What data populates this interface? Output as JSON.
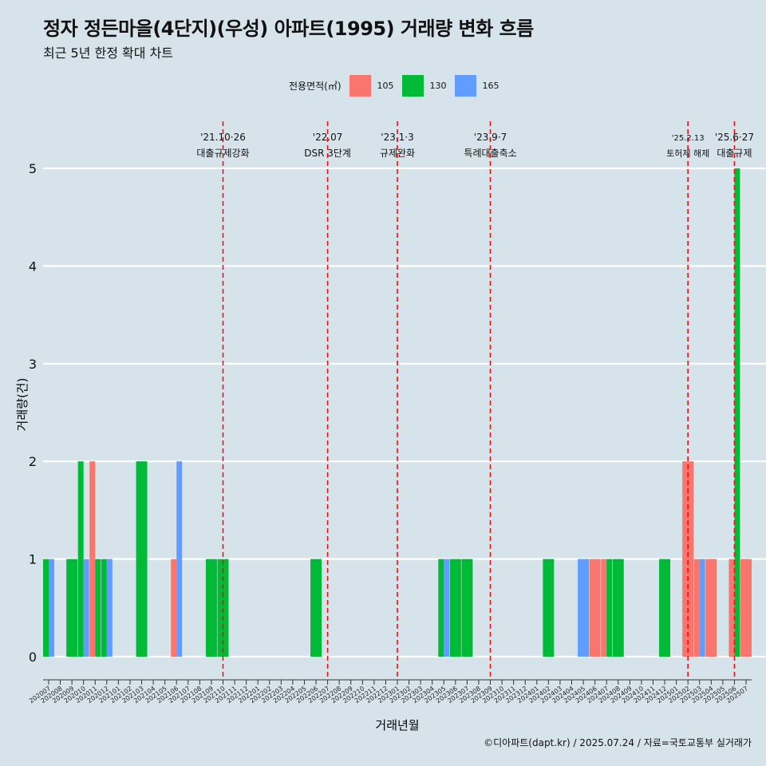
{
  "title": "정자 정든마을(4단지)(우성) 아파트(1995) 거래량 변화 흐름",
  "subtitle": "최근 5년 한정 확대 차트",
  "caption": "©디아파트(dapt.kr) / 2025.07.24 / 자료=국토교통부 실거래가",
  "legend": {
    "title": "전용면적(㎡)",
    "items": [
      {
        "label": "105",
        "color": "#f8766d"
      },
      {
        "label": "130",
        "color": "#00ba38"
      },
      {
        "label": "165",
        "color": "#619cff"
      }
    ]
  },
  "chart_data": {
    "type": "bar",
    "xlabel": "거래년월",
    "ylabel": "거래량(건)",
    "ylim": [
      0,
      5
    ],
    "yticks": [
      0,
      1,
      2,
      3,
      4,
      5
    ],
    "grid": true,
    "legend_position": "top",
    "categories": [
      "202007",
      "202008",
      "202009",
      "202010",
      "202011",
      "202012",
      "202101",
      "202102",
      "202103",
      "202104",
      "202105",
      "202106",
      "202107",
      "202108",
      "202109",
      "202110",
      "202111",
      "202112",
      "202201",
      "202202",
      "202203",
      "202204",
      "202205",
      "202206",
      "202207",
      "202208",
      "202209",
      "202210",
      "202211",
      "202212",
      "202301",
      "202302",
      "202303",
      "202304",
      "202305",
      "202306",
      "202307",
      "202308",
      "202309",
      "202310",
      "202311",
      "202312",
      "202401",
      "202402",
      "202403",
      "202404",
      "202405",
      "202406",
      "202407",
      "202408",
      "202409",
      "202410",
      "202411",
      "202412",
      "202501",
      "202502",
      "202503",
      "202504",
      "202505",
      "202506",
      "202507"
    ],
    "bars": [
      {
        "month": "202007",
        "size": "130",
        "value": 1
      },
      {
        "month": "202007",
        "size": "165",
        "value": 1
      },
      {
        "month": "202009",
        "size": "130",
        "value": 1
      },
      {
        "month": "202010",
        "size": "130",
        "value": 2
      },
      {
        "month": "202010",
        "size": "165",
        "value": 1
      },
      {
        "month": "202011",
        "size": "105",
        "value": 2
      },
      {
        "month": "202011",
        "size": "130",
        "value": 1
      },
      {
        "month": "202012",
        "size": "130",
        "value": 1
      },
      {
        "month": "202012",
        "size": "165",
        "value": 1
      },
      {
        "month": "202103",
        "size": "130",
        "value": 2
      },
      {
        "month": "202106",
        "size": "105",
        "value": 1
      },
      {
        "month": "202106",
        "size": "165",
        "value": 2
      },
      {
        "month": "202109",
        "size": "130",
        "value": 1
      },
      {
        "month": "202110",
        "size": "130",
        "value": 1
      },
      {
        "month": "202206",
        "size": "130",
        "value": 1
      },
      {
        "month": "202305",
        "size": "130",
        "value": 1
      },
      {
        "month": "202305",
        "size": "165",
        "value": 1
      },
      {
        "month": "202306",
        "size": "130",
        "value": 1
      },
      {
        "month": "202307",
        "size": "130",
        "value": 1
      },
      {
        "month": "202402",
        "size": "130",
        "value": 1
      },
      {
        "month": "202405",
        "size": "165",
        "value": 1
      },
      {
        "month": "202406",
        "size": "105",
        "value": 1
      },
      {
        "month": "202407",
        "size": "105",
        "value": 1
      },
      {
        "month": "202407",
        "size": "130",
        "value": 1
      },
      {
        "month": "202408",
        "size": "130",
        "value": 1
      },
      {
        "month": "202412",
        "size": "130",
        "value": 1
      },
      {
        "month": "202502",
        "size": "105",
        "value": 2
      },
      {
        "month": "202503",
        "size": "105",
        "value": 1
      },
      {
        "month": "202503",
        "size": "165",
        "value": 1
      },
      {
        "month": "202504",
        "size": "105",
        "value": 1
      },
      {
        "month": "202506",
        "size": "105",
        "value": 1
      },
      {
        "month": "202506",
        "size": "130",
        "value": 5
      },
      {
        "month": "202507",
        "size": "105",
        "value": 1
      }
    ],
    "events": [
      {
        "month": "202110",
        "date": "'21.10·26",
        "label": "대출규제강화"
      },
      {
        "month": "202207",
        "date": "'22.07",
        "label": "DSR 3단계"
      },
      {
        "month": "202301",
        "date": "'23.1·3",
        "label": "규제완화"
      },
      {
        "month": "202309",
        "date": "'23.9·7",
        "label": "특례대출축소"
      },
      {
        "month": "202502",
        "date": "'25.2.13",
        "label": "토허제 해제"
      },
      {
        "month": "202506",
        "date": "'25.6·27",
        "label": "대출규제"
      }
    ]
  }
}
